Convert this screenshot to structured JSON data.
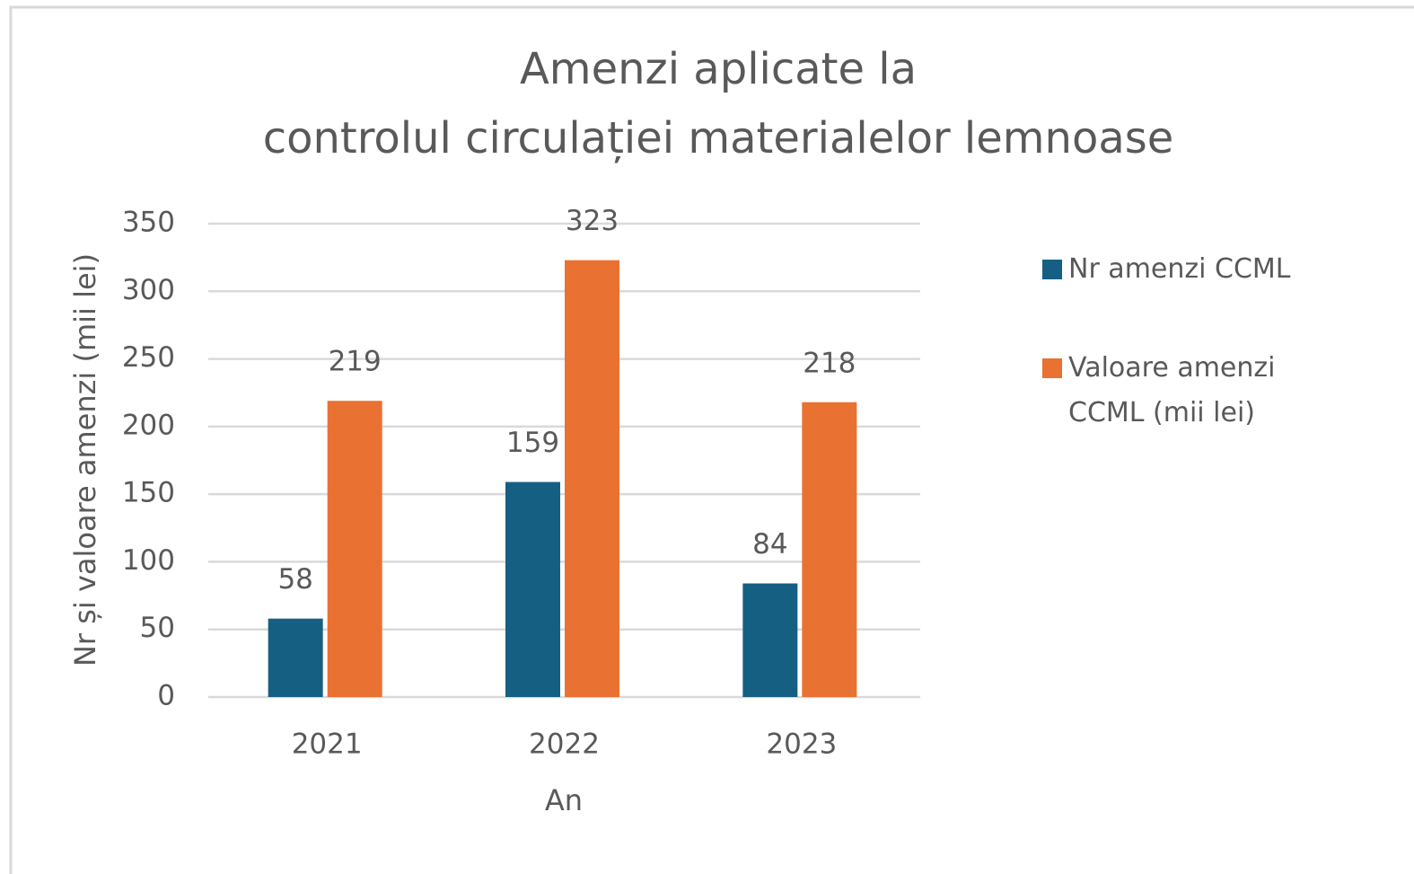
{
  "chart_data": {
    "type": "bar",
    "title": [
      "Amenzi aplicate la",
      "controlul circulației materialelor lemnoase"
    ],
    "x_label": "An",
    "y_label": "Nr și valoare amenzi (mii lei)",
    "categories": [
      "2021",
      "2022",
      "2023"
    ],
    "series": [
      {
        "name": "Nr amenzi CCML",
        "color": "#156082",
        "values": [
          58,
          159,
          84
        ]
      },
      {
        "name": "Valoare amenzi CCML (mii lei)",
        "color": "#e97132",
        "values": [
          219,
          323,
          218
        ]
      }
    ],
    "ylim": [
      0,
      350
    ],
    "yticks": [
      0,
      50,
      100,
      150,
      200,
      250,
      300,
      350
    ],
    "grid": true,
    "legend": "right"
  }
}
